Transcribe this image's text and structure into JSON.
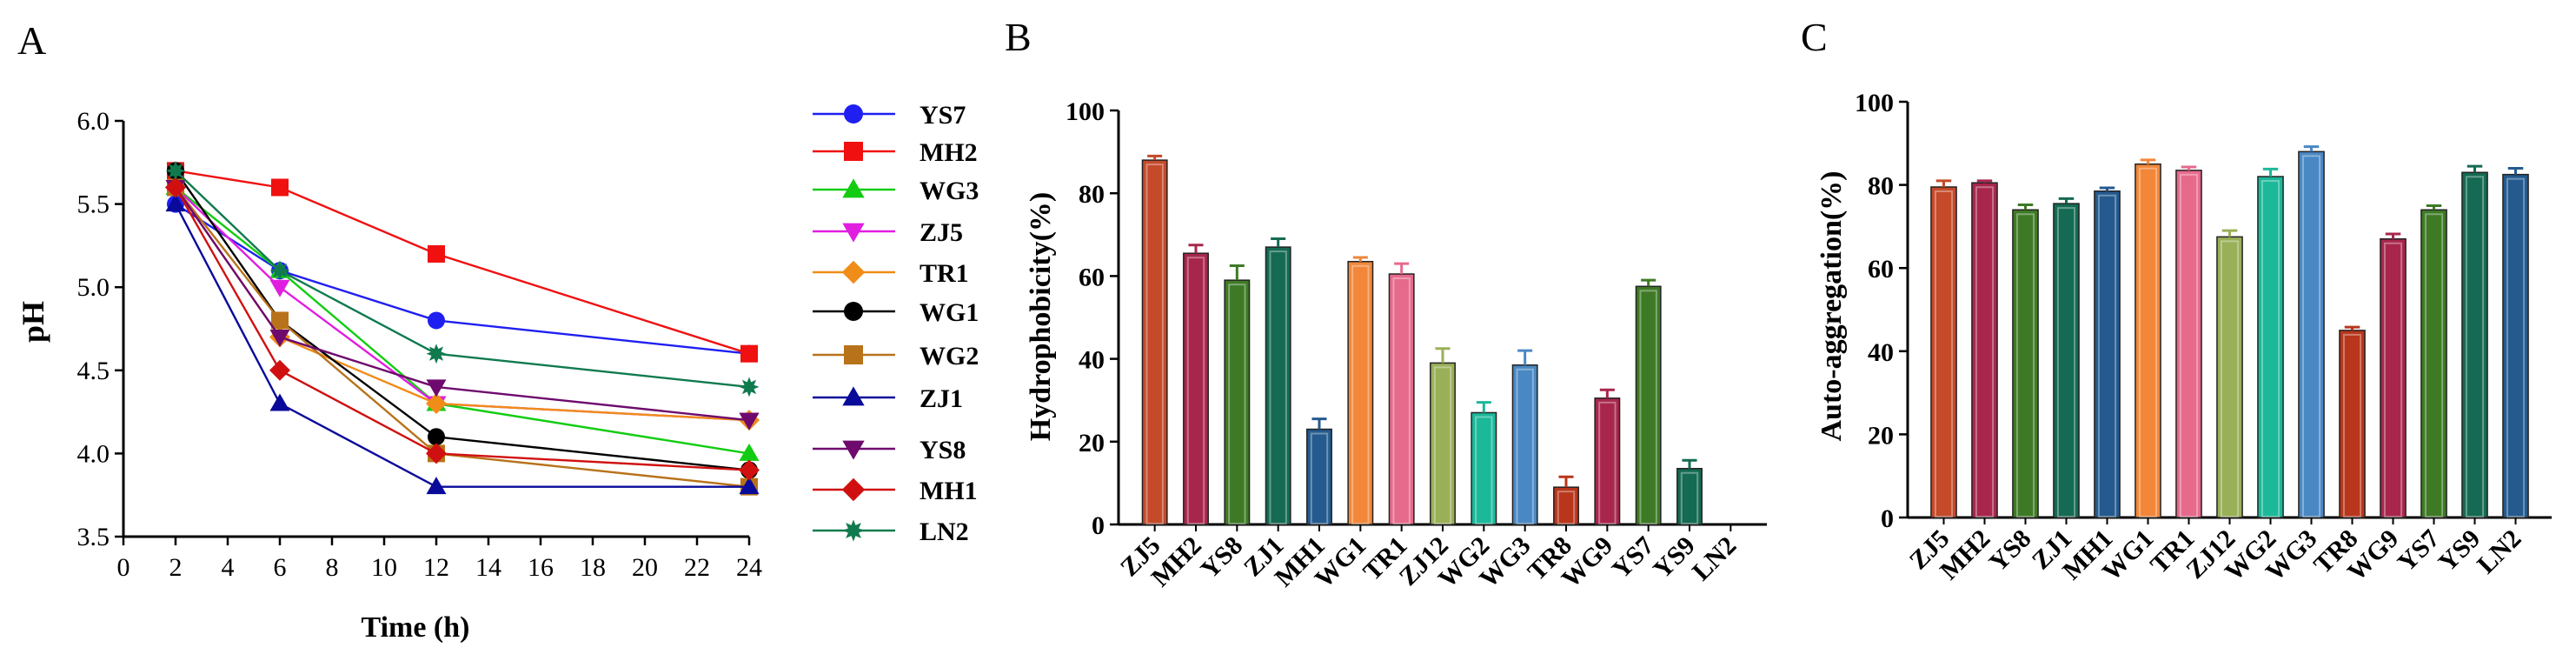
{
  "chart_data": [
    {
      "panel": "A",
      "type": "line",
      "xlabel": "Time (h)",
      "ylabel": "pH",
      "xlim": [
        0,
        24
      ],
      "ylim": [
        3.5,
        6.0
      ],
      "xticks": [
        "0",
        "2",
        "4",
        "6",
        "8",
        "10",
        "12",
        "14",
        "16",
        "18",
        "20",
        "22",
        "24"
      ],
      "yticks": [
        "3.5",
        "4.0",
        "4.5",
        "5.0",
        "5.5",
        "6.0"
      ],
      "x": [
        2,
        6,
        12,
        24
      ],
      "series": [
        {
          "name": "YS7",
          "color": "#1f1ff2",
          "marker": "circle",
          "values": [
            5.5,
            5.1,
            4.8,
            4.6
          ]
        },
        {
          "name": "MH2",
          "color": "#f01010",
          "marker": "square",
          "values": [
            5.7,
            5.6,
            5.2,
            4.6
          ]
        },
        {
          "name": "WG3",
          "color": "#12cc12",
          "marker": "triangle",
          "values": [
            5.6,
            5.1,
            4.3,
            4.0
          ]
        },
        {
          "name": "ZJ5",
          "color": "#e01ee0",
          "marker": "triangle-down",
          "values": [
            5.6,
            5.0,
            4.3,
            4.2
          ]
        },
        {
          "name": "TR1",
          "color": "#f08c18",
          "marker": "diamond",
          "values": [
            5.6,
            4.7,
            4.3,
            4.2
          ]
        },
        {
          "name": "WG1",
          "color": "#000000",
          "marker": "circle",
          "values": [
            5.7,
            4.8,
            4.1,
            3.9
          ]
        },
        {
          "name": "WG2",
          "color": "#b8731a",
          "marker": "square",
          "values": [
            5.6,
            4.8,
            4.0,
            3.8
          ]
        },
        {
          "name": "ZJ1",
          "color": "#0a0a9a",
          "marker": "triangle",
          "values": [
            5.5,
            4.3,
            3.8,
            3.8
          ]
        },
        {
          "name": "YS8",
          "color": "#6e0a6e",
          "marker": "triangle-down",
          "values": [
            5.6,
            4.7,
            4.4,
            4.2
          ]
        },
        {
          "name": "MH1",
          "color": "#d01010",
          "marker": "diamond",
          "values": [
            5.6,
            4.5,
            4.0,
            3.9
          ]
        },
        {
          "name": "LN2",
          "color": "#107a4e",
          "marker": "star",
          "values": [
            5.7,
            5.1,
            4.6,
            4.4
          ]
        }
      ]
    },
    {
      "panel": "B",
      "type": "bar",
      "ylabel": "Hydrophobicity(%)",
      "ylim": [
        0,
        100
      ],
      "yticks": [
        "0",
        "20",
        "40",
        "60",
        "80",
        "100"
      ],
      "categories": [
        "ZJ5",
        "MH2",
        "YS8",
        "ZJ1",
        "MH1",
        "WG1",
        "TR1",
        "ZJ12",
        "WG2",
        "WG3",
        "TR8",
        "WG9",
        "YS7",
        "YS9",
        "LN2"
      ],
      "values": [
        88,
        65.5,
        59,
        67,
        23,
        63.5,
        60.5,
        39,
        27,
        38.5,
        9,
        30.5,
        57.5,
        13.5,
        0
      ],
      "errors": [
        1,
        2,
        3.5,
        2,
        2.5,
        1,
        2.5,
        3.5,
        2.5,
        3.5,
        2.5,
        2,
        1.5,
        2,
        0
      ],
      "colors": [
        "#c44a2a",
        "#a8264c",
        "#3e7a25",
        "#146a52",
        "#245a8e",
        "#f2873a",
        "#e66a8c",
        "#9ab058",
        "#1cb89a",
        "#4a88c4",
        "#b8361c",
        "#a8264c",
        "#3e7a25",
        "#146a52",
        "#245a8e"
      ]
    },
    {
      "panel": "C",
      "type": "bar",
      "ylabel": "Auto-aggregation(%)",
      "ylim": [
        0,
        100
      ],
      "yticks": [
        "0",
        "20",
        "40",
        "60",
        "80",
        "100"
      ],
      "categories": [
        "ZJ5",
        "MH2",
        "YS8",
        "ZJ1",
        "MH1",
        "WG1",
        "TR1",
        "ZJ12",
        "WG2",
        "WG3",
        "TR8",
        "WG9",
        "YS7",
        "YS9",
        "LN2"
      ],
      "values": [
        79.5,
        80.5,
        74,
        75.5,
        78.5,
        85,
        83.5,
        67.5,
        82,
        88,
        45,
        67,
        74,
        83,
        82.5
      ],
      "errors": [
        1.5,
        0.5,
        1.2,
        1.2,
        0.8,
        1,
        0.8,
        1.5,
        1.8,
        1.2,
        0.8,
        1.2,
        1,
        1.5,
        1.5
      ],
      "colors": [
        "#c44a2a",
        "#a8264c",
        "#3e7a25",
        "#146a52",
        "#245a8e",
        "#f2873a",
        "#e66a8c",
        "#9ab058",
        "#1cb89a",
        "#4a88c4",
        "#b8361c",
        "#a8264c",
        "#3e7a25",
        "#146a52",
        "#245a8e"
      ]
    }
  ],
  "panel_labels": [
    "A",
    "B",
    "C"
  ]
}
